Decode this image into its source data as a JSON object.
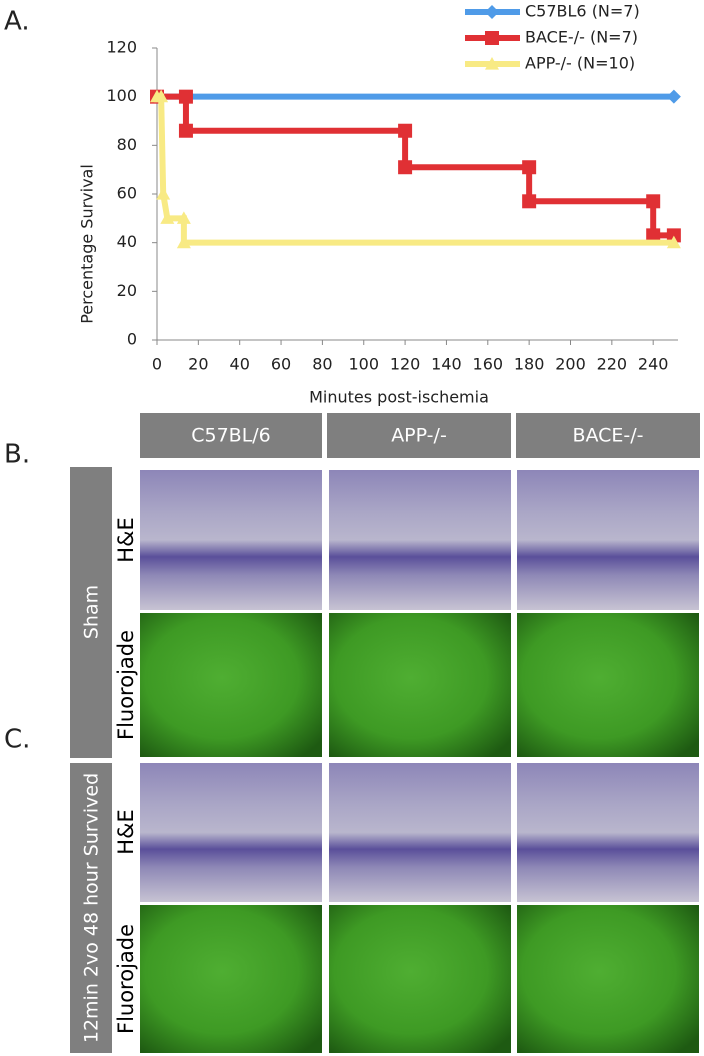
{
  "chart_data": {
    "type": "line",
    "x_label": "Minutes post-ischemia",
    "y_label": "Percentage Survival",
    "xlim": [
      0,
      252
    ],
    "xticks": [
      0,
      20,
      40,
      60,
      80,
      100,
      120,
      140,
      160,
      180,
      200,
      220,
      240
    ],
    "ylim": [
      0,
      120
    ],
    "yticks": [
      0,
      20,
      40,
      60,
      80,
      100,
      120
    ],
    "legend": "top-right",
    "series": [
      {
        "name": "C57BL6 (N=7)",
        "color": "#4f9be8",
        "marker": "diamond",
        "x": [
          0,
          250
        ],
        "values": [
          100,
          100
        ]
      },
      {
        "name": "BACE-/- (N=7)",
        "color": "#e03034",
        "marker": "square",
        "x": [
          0,
          14,
          14,
          120,
          120,
          180,
          180,
          240,
          240,
          250
        ],
        "values": [
          100,
          100,
          86,
          86,
          71,
          71,
          57,
          57,
          43,
          43
        ]
      },
      {
        "name": "APP-/- (N=10)",
        "color": "#f8ea84",
        "marker": "triangle",
        "x": [
          0,
          2,
          3,
          5,
          13,
          13,
          250
        ],
        "values": [
          100,
          100,
          60,
          50,
          50,
          40,
          40
        ]
      }
    ]
  },
  "figure": {
    "panel_labels": [
      "A.",
      "B.",
      "C."
    ],
    "columns": [
      "C57BL/6",
      "APP-/-",
      "BACE-/-"
    ],
    "groups": [
      {
        "label": "Sham",
        "rows": [
          "H&E",
          "Fluorojade"
        ]
      },
      {
        "label": "12min 2vo 48 hour Survived",
        "rows": [
          "H&E",
          "Fluorojade"
        ]
      }
    ]
  }
}
